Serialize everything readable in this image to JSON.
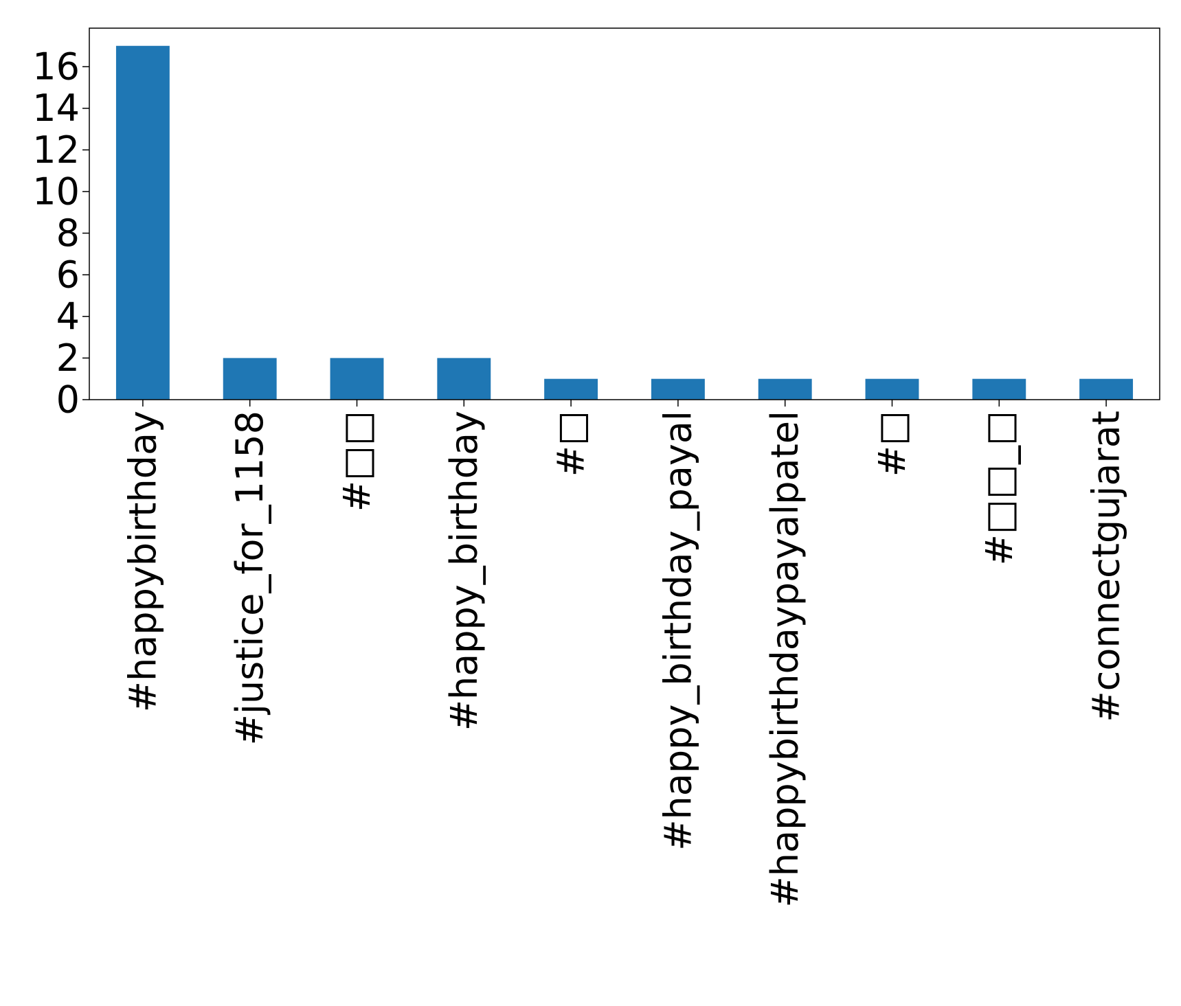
{
  "chart_data": {
    "type": "bar",
    "title": "",
    "xlabel": "",
    "ylabel": "",
    "categories": [
      "#happybirthday",
      "#justice_for_1158",
      "#□□",
      "#happy_birthday",
      "#□",
      "#happy_birthday_payal",
      "#happybirthdaypayalpatel",
      "#□",
      "#□□_□",
      "#connectgujarat"
    ],
    "values": [
      17,
      2,
      2,
      2,
      1,
      1,
      1,
      1,
      1,
      1
    ],
    "ylim": [
      0,
      17.85
    ],
    "yticks": [
      0,
      2,
      4,
      6,
      8,
      10,
      12,
      14,
      16
    ],
    "bar_color": "#1f77b4",
    "grid": false,
    "legend": "none"
  }
}
